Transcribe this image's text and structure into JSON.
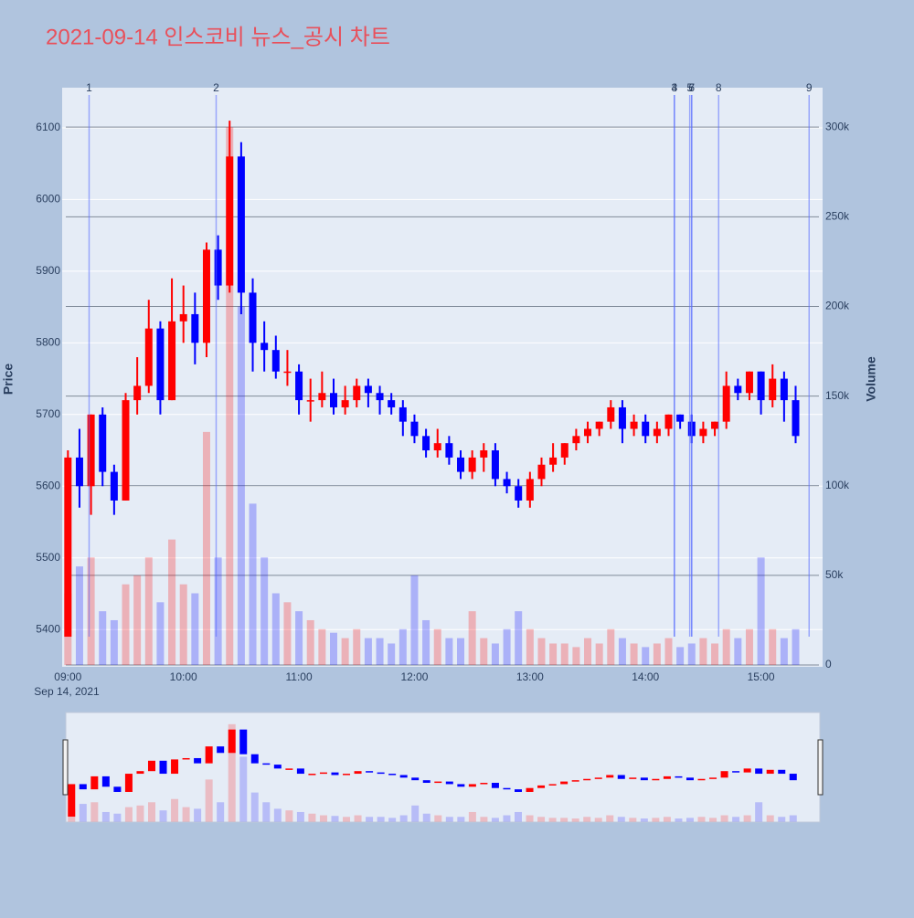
{
  "chart_data": {
    "type": "candlestick",
    "title": "2021-09-14 인스코비 뉴스_공시 차트",
    "y_label": "Price",
    "y2_label": "Volume",
    "x_date_label": "Sep 14, 2021",
    "increasing_color": "#ff0000",
    "decreasing_color": "#0000ff",
    "x": [
      "09:00",
      "09:06",
      "09:12",
      "09:18",
      "09:24",
      "09:30",
      "09:36",
      "09:42",
      "09:48",
      "09:54",
      "10:00",
      "10:06",
      "10:12",
      "10:18",
      "10:24",
      "10:30",
      "10:36",
      "10:42",
      "10:48",
      "10:54",
      "11:00",
      "11:06",
      "11:12",
      "11:18",
      "11:24",
      "11:30",
      "11:36",
      "11:42",
      "11:48",
      "11:54",
      "12:00",
      "12:06",
      "12:12",
      "12:18",
      "12:24",
      "12:30",
      "12:36",
      "12:42",
      "12:48",
      "12:54",
      "13:00",
      "13:06",
      "13:12",
      "13:18",
      "13:24",
      "13:30",
      "13:36",
      "13:42",
      "13:48",
      "13:54",
      "14:00",
      "14:06",
      "14:12",
      "14:18",
      "14:24",
      "14:30",
      "14:36",
      "14:42",
      "14:48",
      "14:54",
      "15:00",
      "15:06",
      "15:12",
      "15:18"
    ],
    "open": [
      5390,
      5640,
      5600,
      5700,
      5620,
      5580,
      5720,
      5740,
      5820,
      5720,
      5830,
      5840,
      5800,
      5930,
      5880,
      6060,
      5870,
      5800,
      5790,
      5760,
      5760,
      5720,
      5720,
      5730,
      5710,
      5720,
      5740,
      5730,
      5720,
      5710,
      5690,
      5670,
      5650,
      5660,
      5640,
      5620,
      5640,
      5650,
      5610,
      5600,
      5580,
      5610,
      5630,
      5640,
      5660,
      5670,
      5680,
      5690,
      5710,
      5680,
      5690,
      5670,
      5680,
      5700,
      5690,
      5670,
      5680,
      5690,
      5740,
      5730,
      5760,
      5720,
      5750,
      5720
    ],
    "high": [
      5650,
      5680,
      5700,
      5710,
      5630,
      5730,
      5780,
      5860,
      5830,
      5890,
      5880,
      5870,
      5940,
      5950,
      6110,
      6080,
      5890,
      5830,
      5810,
      5790,
      5770,
      5750,
      5760,
      5750,
      5740,
      5750,
      5750,
      5740,
      5730,
      5720,
      5700,
      5680,
      5680,
      5670,
      5650,
      5650,
      5660,
      5660,
      5620,
      5610,
      5620,
      5640,
      5660,
      5660,
      5680,
      5690,
      5690,
      5720,
      5720,
      5700,
      5700,
      5690,
      5700,
      5700,
      5700,
      5690,
      5690,
      5760,
      5750,
      5760,
      5760,
      5770,
      5760,
      5740
    ],
    "low": [
      5390,
      5570,
      5560,
      5600,
      5560,
      5580,
      5700,
      5730,
      5700,
      5720,
      5800,
      5770,
      5780,
      5860,
      5870,
      5840,
      5760,
      5760,
      5750,
      5740,
      5700,
      5690,
      5710,
      5700,
      5700,
      5710,
      5710,
      5700,
      5700,
      5670,
      5660,
      5640,
      5640,
      5630,
      5610,
      5610,
      5620,
      5600,
      5590,
      5570,
      5570,
      5600,
      5620,
      5630,
      5650,
      5660,
      5670,
      5680,
      5660,
      5670,
      5660,
      5660,
      5670,
      5680,
      5660,
      5660,
      5670,
      5680,
      5720,
      5720,
      5700,
      5710,
      5690,
      5660
    ],
    "close": [
      5640,
      5600,
      5700,
      5620,
      5580,
      5720,
      5740,
      5820,
      5720,
      5830,
      5840,
      5800,
      5930,
      5880,
      6060,
      5870,
      5800,
      5790,
      5760,
      5760,
      5720,
      5720,
      5730,
      5710,
      5720,
      5740,
      5730,
      5720,
      5710,
      5690,
      5670,
      5650,
      5660,
      5640,
      5620,
      5640,
      5650,
      5610,
      5600,
      5580,
      5610,
      5630,
      5640,
      5660,
      5670,
      5680,
      5690,
      5710,
      5680,
      5690,
      5670,
      5680,
      5700,
      5690,
      5670,
      5680,
      5690,
      5740,
      5730,
      5760,
      5720,
      5750,
      5720,
      5670
    ],
    "volume": [
      40000,
      55000,
      60000,
      30000,
      25000,
      45000,
      50000,
      60000,
      35000,
      70000,
      45000,
      40000,
      130000,
      60000,
      300000,
      200000,
      90000,
      60000,
      40000,
      35000,
      30000,
      25000,
      20000,
      18000,
      15000,
      20000,
      15000,
      15000,
      12000,
      20000,
      50000,
      25000,
      20000,
      15000,
      15000,
      30000,
      15000,
      12000,
      20000,
      30000,
      20000,
      15000,
      12000,
      12000,
      10000,
      15000,
      12000,
      20000,
      15000,
      12000,
      10000,
      12000,
      15000,
      10000,
      12000,
      15000,
      12000,
      20000,
      15000,
      20000,
      60000,
      20000,
      15000,
      20000
    ],
    "news": [
      {
        "label": "1",
        "x": "09:11"
      },
      {
        "label": "2",
        "x": "10:17"
      },
      {
        "label": "3",
        "x": "14:15"
      },
      {
        "label": "4",
        "x": "14:15"
      },
      {
        "label": "5",
        "x": "14:23"
      },
      {
        "label": "6",
        "x": "14:24"
      },
      {
        "label": "7",
        "x": "14:24"
      },
      {
        "label": "8",
        "x": "14:38"
      },
      {
        "label": "9",
        "x": "15:25"
      }
    ],
    "xlim": [
      "08:57",
      "15:32"
    ],
    "xticks": [
      "09:00",
      "10:00",
      "11:00",
      "12:00",
      "13:00",
      "14:00",
      "15:00"
    ],
    "ylim": [
      5348,
      6156
    ],
    "yticks": [
      5400,
      5500,
      5600,
      5700,
      5800,
      5900,
      6000,
      6100
    ],
    "y2lim": [
      -1000,
      322000
    ],
    "y2ticks": [
      0,
      {
        "value": 50000,
        "label": "50k"
      },
      {
        "value": 100000,
        "label": "100k"
      },
      {
        "value": 150000,
        "label": "150k"
      },
      {
        "value": 200000,
        "label": "200k"
      },
      {
        "value": 250000,
        "label": "250k"
      },
      {
        "value": 300000,
        "label": "300k"
      }
    ],
    "grid": true
  }
}
